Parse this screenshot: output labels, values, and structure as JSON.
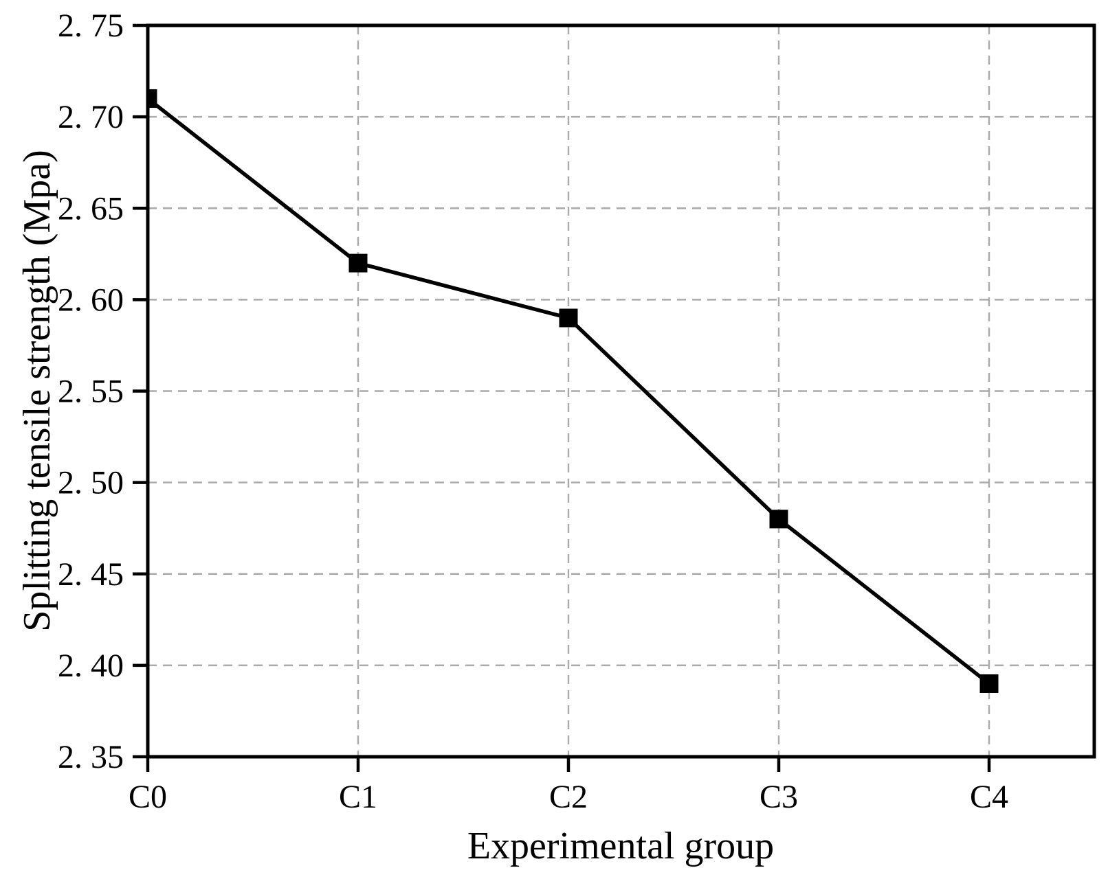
{
  "chart_data": {
    "type": "line",
    "title": "",
    "categories": [
      "C0",
      "C1",
      "C2",
      "C3",
      "C4"
    ],
    "values": [
      2.71,
      2.62,
      2.59,
      2.48,
      2.39
    ],
    "xlabel": "Experimental group",
    "ylabel": "Splitting tensile strength (Mpa)",
    "ylim": [
      2.35,
      2.75
    ],
    "yticks": [
      2.35,
      2.4,
      2.45,
      2.5,
      2.55,
      2.6,
      2.65,
      2.7,
      2.75
    ],
    "ytick_labels": [
      "2. 35",
      "2. 40",
      "2. 45",
      "2. 50",
      "2. 55",
      "2. 60",
      "2. 65",
      "2. 70",
      "2. 75"
    ],
    "grid": "dashed",
    "legend": "none",
    "line_color": "#000000",
    "marker": "square",
    "marker_color": "#000000",
    "axis_color": "#000000",
    "grid_color": "#aaaaaa",
    "background": "#ffffff"
  }
}
